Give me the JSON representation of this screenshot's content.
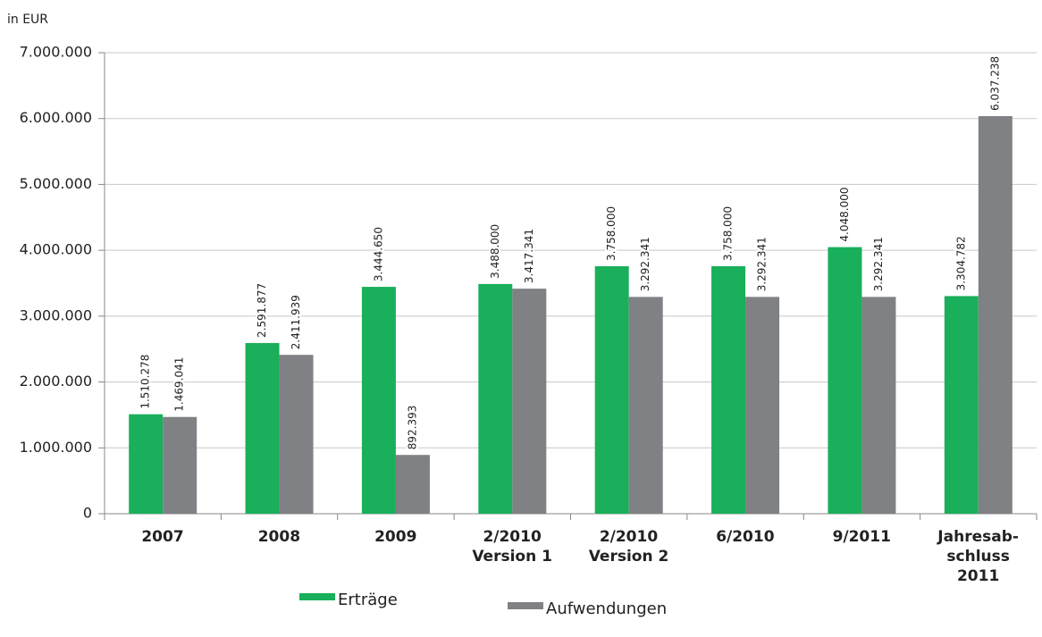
{
  "chart_data": {
    "type": "bar",
    "y_axis_label": "in EUR",
    "categories": [
      "2007",
      "2008",
      "2009",
      "2/2010\nVersion 1",
      "2/2010\nVersion 2",
      "6/2010",
      "9/2011",
      "Jahresab-\nschluss\n2011"
    ],
    "series": [
      {
        "name": "Erträge",
        "color": "#1aaf5a",
        "values": [
          1510278,
          2591877,
          3444650,
          3488000,
          3758000,
          3758000,
          4048000,
          3304782
        ],
        "value_labels": [
          "1.510.278",
          "2.591.877",
          "3.444.650",
          "3.488.000",
          "3.758.000",
          "3.758.000",
          "4.048.000",
          "3.304.782"
        ]
      },
      {
        "name": "Aufwendungen",
        "color": "#808184",
        "values": [
          1469041,
          2411939,
          892393,
          3417341,
          3292341,
          3292341,
          3292341,
          6037238
        ],
        "value_labels": [
          "1.469.041",
          "2.411.939",
          "892.393",
          "3.417.341",
          "3.292.341",
          "3.292.341",
          "3.292.341",
          "6.037.238"
        ]
      }
    ],
    "ylim": [
      0,
      7000000
    ],
    "yticks": [
      0,
      {
        "value": 1000000,
        "label": "1.000.000"
      },
      {
        "value": 2000000,
        "label": "2.000.000"
      },
      {
        "value": 3000000,
        "label": "3.000.000"
      },
      {
        "value": 4000000,
        "label": "4.000.000"
      },
      {
        "value": 5000000,
        "label": "5.000.000"
      },
      {
        "value": 6000000,
        "label": "6.000.000"
      },
      {
        "value": 7000000,
        "label": "7.000.000"
      }
    ],
    "grid": true
  }
}
